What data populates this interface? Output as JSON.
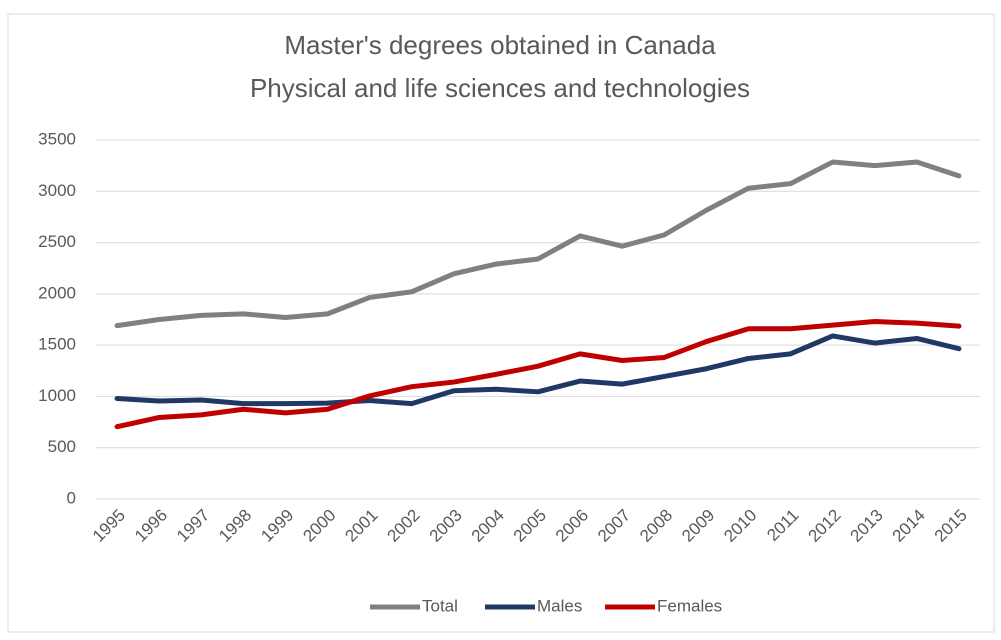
{
  "chart_data": {
    "type": "line",
    "title": "Master's degrees obtained in Canada",
    "subtitle": "Physical and life sciences and technologies",
    "categories": [
      "1995",
      "1996",
      "1997",
      "1998",
      "1999",
      "2000",
      "2001",
      "2002",
      "2003",
      "2004",
      "2005",
      "2006",
      "2007",
      "2008",
      "2009",
      "2010",
      "2011",
      "2012",
      "2013",
      "2014",
      "2015"
    ],
    "series": [
      {
        "name": "Total",
        "color": "#808080",
        "values": [
          1690,
          1750,
          1790,
          1805,
          1770,
          1805,
          1965,
          2020,
          2195,
          2290,
          2340,
          2565,
          2465,
          2575,
          2815,
          3030,
          3075,
          3285,
          3250,
          3285,
          3150
        ]
      },
      {
        "name": "Males",
        "color": "#203864",
        "values": [
          980,
          955,
          965,
          930,
          930,
          935,
          960,
          930,
          1055,
          1070,
          1045,
          1150,
          1120,
          1195,
          1270,
          1370,
          1415,
          1590,
          1520,
          1565,
          1465
        ]
      },
      {
        "name": "Females",
        "color": "#c00000",
        "values": [
          705,
          795,
          820,
          875,
          840,
          875,
          1005,
          1095,
          1140,
          1215,
          1295,
          1415,
          1350,
          1380,
          1535,
          1660,
          1660,
          1695,
          1730,
          1715,
          1685
        ]
      }
    ],
    "ylim": [
      0,
      3500
    ],
    "yticks": [
      0,
      500,
      1000,
      1500,
      2000,
      2500,
      3000,
      3500
    ],
    "grid": true,
    "legend": "bottom"
  }
}
